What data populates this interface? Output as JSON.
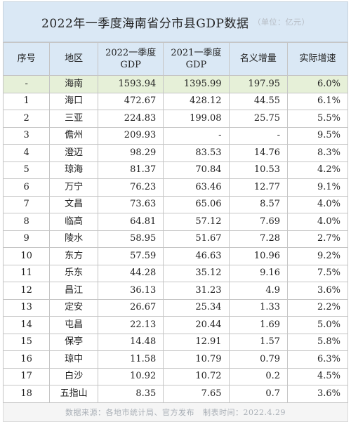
{
  "title": "2022年一季度海南省分市县GDP数据",
  "unit": "（单位：亿元）",
  "headers": {
    "index": "序号",
    "region": "地区",
    "gdp2022_line1": "2022一季度",
    "gdp2022_line2": "GDP",
    "gdp2021_line1": "2021一季度",
    "gdp2021_line2": "GDP",
    "nominal": "名义增量",
    "real": "实际增速"
  },
  "rows": [
    {
      "idx": "-",
      "name": "海南",
      "g22": "1593.94",
      "g21": "1395.99",
      "inc": "197.95",
      "rate": "6.0%"
    },
    {
      "idx": "1",
      "name": "海口",
      "g22": "472.67",
      "g21": "428.12",
      "inc": "44.55",
      "rate": "6.1%"
    },
    {
      "idx": "2",
      "name": "三亚",
      "g22": "224.83",
      "g21": "199.08",
      "inc": "25.75",
      "rate": "5.5%"
    },
    {
      "idx": "3",
      "name": "儋州",
      "g22": "209.93",
      "g21": "-",
      "inc": "-",
      "rate": "9.5%"
    },
    {
      "idx": "4",
      "name": "澄迈",
      "g22": "98.29",
      "g21": "83.53",
      "inc": "14.76",
      "rate": "8.3%"
    },
    {
      "idx": "5",
      "name": "琼海",
      "g22": "81.37",
      "g21": "70.84",
      "inc": "10.53",
      "rate": "4.2%"
    },
    {
      "idx": "6",
      "name": "万宁",
      "g22": "76.23",
      "g21": "63.46",
      "inc": "12.77",
      "rate": "9.1%"
    },
    {
      "idx": "7",
      "name": "文昌",
      "g22": "73.63",
      "g21": "65.06",
      "inc": "8.57",
      "rate": "4.0%"
    },
    {
      "idx": "8",
      "name": "临高",
      "g22": "64.81",
      "g21": "57.12",
      "inc": "7.69",
      "rate": "4.0%"
    },
    {
      "idx": "9",
      "name": "陵水",
      "g22": "58.95",
      "g21": "51.67",
      "inc": "7.28",
      "rate": "2.7%"
    },
    {
      "idx": "10",
      "name": "东方",
      "g22": "57.59",
      "g21": "46.63",
      "inc": "10.96",
      "rate": "9.2%"
    },
    {
      "idx": "11",
      "name": "乐东",
      "g22": "44.28",
      "g21": "35.12",
      "inc": "9.16",
      "rate": "7.5%"
    },
    {
      "idx": "12",
      "name": "昌江",
      "g22": "36.13",
      "g21": "31.23",
      "inc": "4.9",
      "rate": "3.6%"
    },
    {
      "idx": "13",
      "name": "定安",
      "g22": "26.67",
      "g21": "25.34",
      "inc": "1.33",
      "rate": "2.2%"
    },
    {
      "idx": "14",
      "name": "屯昌",
      "g22": "22.13",
      "g21": "20.44",
      "inc": "1.69",
      "rate": "5.0%"
    },
    {
      "idx": "15",
      "name": "保亭",
      "g22": "14.48",
      "g21": "12.91",
      "inc": "1.57",
      "rate": "5.8%"
    },
    {
      "idx": "16",
      "name": "琼中",
      "g22": "11.58",
      "g21": "10.79",
      "inc": "0.79",
      "rate": "6.3%"
    },
    {
      "idx": "17",
      "name": "白沙",
      "g22": "10.92",
      "g21": "10.72",
      "inc": "0.2",
      "rate": "4.5%"
    },
    {
      "idx": "18",
      "name": "五指山",
      "g22": "8.35",
      "g21": "7.65",
      "inc": "0.7",
      "rate": "3.6%"
    }
  ],
  "footer": {
    "source": "数据来源：各地市统计局、官方发布",
    "time": "制表时间：2022.4.29"
  }
}
